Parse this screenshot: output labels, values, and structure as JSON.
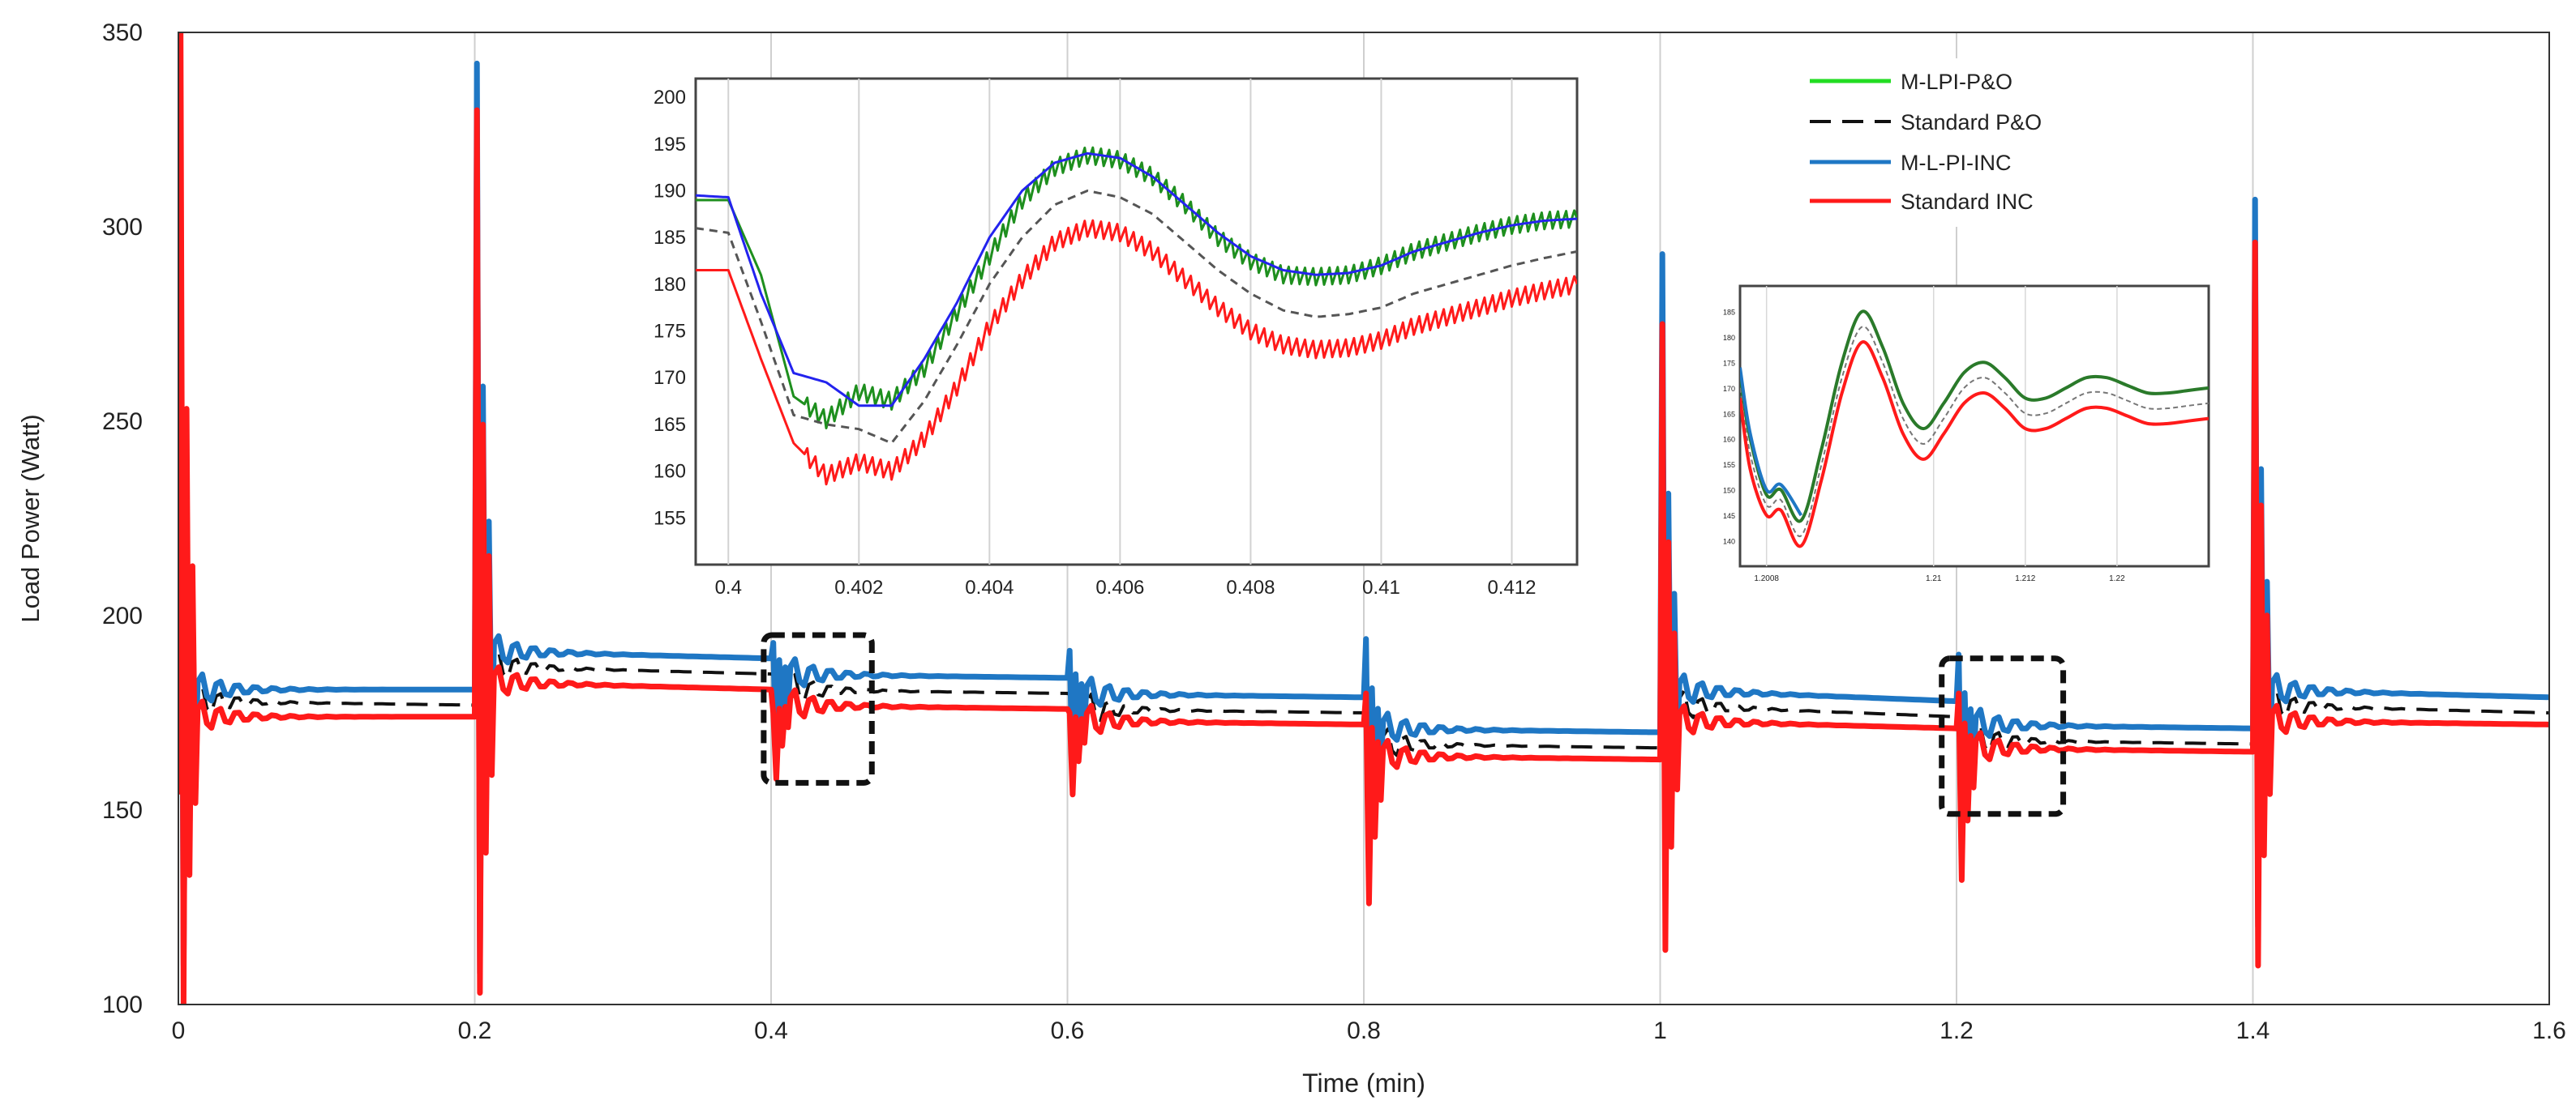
{
  "chart_data": {
    "type": "line",
    "xlabel": "Time (min)",
    "ylabel": "Load Power (Watt)",
    "xlim": [
      0,
      1.6
    ],
    "ylim": [
      100,
      350
    ],
    "x_ticks": [
      "0",
      "0.2",
      "0.4",
      "0.6",
      "0.8",
      "1",
      "1.2",
      "1.4",
      "1.6"
    ],
    "y_ticks": [
      "100",
      "150",
      "200",
      "250",
      "300",
      "350"
    ],
    "grid": "vertical",
    "legend": {
      "placement": "top-right",
      "entries": [
        {
          "label": "M-LPI-P&O",
          "color": "#22dd22",
          "style": "solid"
        },
        {
          "label": "Standard P&O",
          "color": "#111111",
          "style": "dashed"
        },
        {
          "label": "M-L-PI-INC",
          "color": "#1f77c4",
          "style": "solid"
        },
        {
          "label": "Standard INC",
          "color": "#ff1a1a",
          "style": "solid"
        }
      ]
    },
    "step_times": [
      0,
      0.2,
      0.4,
      0.6,
      0.8,
      1.0,
      1.2,
      1.4
    ],
    "spike_peaks": {
      "M-L-PI-INC": [
        275,
        342,
        193,
        191,
        194,
        293,
        190,
        307
      ],
      "Standard INC": [
        350,
        330,
        175,
        175,
        180,
        275,
        180,
        296
      ]
    },
    "spike_troughs": {
      "M-L-PI-INC": [
        110,
        108,
        160,
        158,
        138,
        130,
        140,
        120
      ],
      "Standard INC": [
        100,
        103,
        158,
        154,
        126,
        114,
        132,
        110
      ]
    },
    "series": [
      {
        "name": "M-L-PI-INC",
        "color": "#1f77c4",
        "style": "solid",
        "segments": [
          {
            "t0": 0,
            "t1": 0.2,
            "start": 181,
            "end": 181
          },
          {
            "t0": 0.2,
            "t1": 0.4,
            "start": 191,
            "end": 189
          },
          {
            "t0": 0.4,
            "t1": 0.6,
            "start": 185,
            "end": 184
          },
          {
            "t0": 0.6,
            "t1": 0.8,
            "start": 180,
            "end": 179
          },
          {
            "t0": 0.8,
            "t1": 1.0,
            "start": 171,
            "end": 170
          },
          {
            "t0": 1.0,
            "t1": 1.2,
            "start": 181,
            "end": 178
          },
          {
            "t0": 1.2,
            "t1": 1.4,
            "start": 172,
            "end": 171
          },
          {
            "t0": 1.4,
            "t1": 1.6,
            "start": 181,
            "end": 179
          }
        ]
      },
      {
        "name": "Standard P&O",
        "color": "#111111",
        "style": "dashed",
        "segments": [
          {
            "t0": 0,
            "t1": 0.2,
            "start": 178,
            "end": 177
          },
          {
            "t0": 0.2,
            "t1": 0.4,
            "start": 187,
            "end": 185
          },
          {
            "t0": 0.4,
            "t1": 0.6,
            "start": 181,
            "end": 180
          },
          {
            "t0": 0.6,
            "t1": 0.8,
            "start": 176,
            "end": 175
          },
          {
            "t0": 0.8,
            "t1": 1.0,
            "start": 167,
            "end": 166
          },
          {
            "t0": 1.0,
            "t1": 1.2,
            "start": 177,
            "end": 174
          },
          {
            "t0": 1.2,
            "t1": 1.4,
            "start": 168,
            "end": 167
          },
          {
            "t0": 1.4,
            "t1": 1.6,
            "start": 177,
            "end": 175
          }
        ]
      },
      {
        "name": "Standard INC",
        "color": "#ff1a1a",
        "style": "solid",
        "segments": [
          {
            "t0": 0,
            "t1": 0.2,
            "start": 174,
            "end": 174
          },
          {
            "t0": 0.2,
            "t1": 0.4,
            "start": 183,
            "end": 181
          },
          {
            "t0": 0.4,
            "t1": 0.6,
            "start": 177,
            "end": 176
          },
          {
            "t0": 0.6,
            "t1": 0.8,
            "start": 173,
            "end": 172
          },
          {
            "t0": 0.8,
            "t1": 1.0,
            "start": 164,
            "end": 163
          },
          {
            "t0": 1.0,
            "t1": 1.2,
            "start": 173,
            "end": 171
          },
          {
            "t0": 1.2,
            "t1": 1.4,
            "start": 166,
            "end": 165
          },
          {
            "t0": 1.4,
            "t1": 1.6,
            "start": 173,
            "end": 172
          }
        ]
      }
    ],
    "zoom_boxes": [
      {
        "name": "zoom-box-0.4",
        "t0": 0.395,
        "t1": 0.468,
        "y0": 157,
        "y1": 195
      },
      {
        "name": "zoom-box-1.2",
        "t0": 1.19,
        "t1": 1.272,
        "y0": 149,
        "y1": 189
      }
    ],
    "inset_1": {
      "type": "line",
      "xlim": [
        0.3995,
        0.413
      ],
      "ylim": [
        150,
        202
      ],
      "x_ticks": [
        "0.4",
        "0.402",
        "0.404",
        "0.406",
        "0.408",
        "0.41",
        "0.412"
      ],
      "y_ticks": [
        "155",
        "160",
        "165",
        "170",
        "175",
        "180",
        "185",
        "190",
        "195",
        "200"
      ],
      "series": [
        {
          "name": "M-LPI-P&O",
          "color": "#1e8f1e",
          "sawtooth": true,
          "x": [
            0.3995,
            0.4,
            0.4005,
            0.401,
            0.4015,
            0.402,
            0.4025,
            0.403,
            0.4035,
            0.404,
            0.4045,
            0.405,
            0.4055,
            0.406,
            0.4065,
            0.407,
            0.4075,
            0.408,
            0.4085,
            0.409,
            0.4095,
            0.41,
            0.4105,
            0.411,
            0.4115,
            0.412,
            0.4125,
            0.413
          ],
          "y": [
            189,
            189,
            181,
            168,
            165.5,
            168.5,
            167.5,
            171,
            177,
            183,
            189,
            192.5,
            193.8,
            193.3,
            191.5,
            188.5,
            185,
            182.5,
            181,
            180.8,
            181,
            182,
            183.5,
            184.5,
            185.5,
            186.3,
            186.8,
            187
          ]
        },
        {
          "name": "M-L-PI-INC",
          "color": "#2323ee",
          "sawtooth": false,
          "x": [
            0.3995,
            0.4,
            0.4005,
            0.401,
            0.4015,
            0.402,
            0.4025,
            0.403,
            0.4035,
            0.404,
            0.4045,
            0.405,
            0.4055,
            0.406,
            0.4065,
            0.407,
            0.4075,
            0.408,
            0.4085,
            0.409,
            0.4095,
            0.41,
            0.4105,
            0.411,
            0.4115,
            0.412,
            0.4125,
            0.413
          ],
          "y": [
            189.5,
            189.3,
            179,
            170.5,
            169.5,
            167,
            167,
            172,
            178,
            185,
            190,
            193,
            194,
            193.5,
            191.5,
            188.5,
            185.5,
            183,
            181.5,
            181,
            181.2,
            182,
            183.5,
            184.5,
            185.5,
            186.3,
            186.8,
            187
          ]
        },
        {
          "name": "Standard P&O",
          "color": "#555555",
          "dashed": true,
          "x": [
            0.3995,
            0.4,
            0.4005,
            0.401,
            0.4015,
            0.402,
            0.4025,
            0.403,
            0.4035,
            0.404,
            0.4045,
            0.405,
            0.4055,
            0.406,
            0.4065,
            0.407,
            0.4075,
            0.408,
            0.4085,
            0.409,
            0.4095,
            0.41,
            0.4105,
            0.411,
            0.4115,
            0.412,
            0.4125,
            0.413
          ],
          "y": [
            186,
            185.5,
            176,
            166,
            165,
            164.5,
            163,
            167.5,
            173.5,
            180,
            185,
            188.5,
            190,
            189.3,
            187.5,
            184.5,
            181.5,
            179,
            177.2,
            176.5,
            176.8,
            177.5,
            179,
            180,
            181,
            182,
            182.8,
            183.5
          ]
        },
        {
          "name": "Standard INC",
          "color": "#ff1a1a",
          "sawtooth": true,
          "x": [
            0.3995,
            0.4,
            0.4005,
            0.401,
            0.4015,
            0.402,
            0.4025,
            0.403,
            0.4035,
            0.404,
            0.4045,
            0.405,
            0.4055,
            0.406,
            0.4065,
            0.407,
            0.4075,
            0.408,
            0.4085,
            0.409,
            0.4095,
            0.41,
            0.4105,
            0.411,
            0.4115,
            0.412,
            0.4125,
            0.413
          ],
          "y": [
            181.5,
            181.5,
            172,
            163,
            159.5,
            161,
            160,
            163.5,
            169,
            175.5,
            180.5,
            184.5,
            186,
            185.5,
            183.5,
            180.5,
            177.5,
            175,
            173.5,
            173,
            173.2,
            174,
            175.5,
            176.5,
            177.5,
            178.5,
            179.3,
            180
          ]
        }
      ]
    },
    "inset_2": {
      "type": "line",
      "xlim": [
        1.1995,
        1.2225
      ],
      "ylim": [
        135,
        190
      ],
      "x_ticks": [
        "1.2008",
        "1.21",
        "1.212",
        "1.22"
      ],
      "y_ticks": [
        "185",
        "180",
        "175",
        "170",
        "165",
        "160",
        "155",
        "150",
        "145",
        "140"
      ],
      "series": [
        {
          "name": "M-LPI-P&O",
          "color": "#2a7a2a",
          "x": [
            1.1995,
            1.2,
            1.2008,
            1.2015,
            1.2025,
            1.2035,
            1.2045,
            1.2055,
            1.2065,
            1.2075,
            1.2085,
            1.2095,
            1.2105,
            1.2115,
            1.2125,
            1.2135,
            1.2145,
            1.2155,
            1.2165,
            1.2175,
            1.2185,
            1.2195,
            1.2205,
            1.2215,
            1.2225
          ],
          "y": [
            172,
            160,
            149,
            150,
            144,
            158,
            175,
            185,
            178,
            167,
            162,
            167,
            173,
            175,
            172,
            168,
            168,
            170,
            172,
            172,
            170.5,
            169,
            169,
            169.5,
            170
          ]
        },
        {
          "name": "Standard P&O",
          "color": "#777777",
          "dashed": true,
          "x": [
            1.1995,
            1.2,
            1.2008,
            1.2015,
            1.2025,
            1.2035,
            1.2045,
            1.2055,
            1.2065,
            1.2075,
            1.2085,
            1.2095,
            1.2105,
            1.2115,
            1.2125,
            1.2135,
            1.2145,
            1.2155,
            1.2165,
            1.2175,
            1.2185,
            1.2195,
            1.2205,
            1.2215,
            1.2225
          ],
          "y": [
            170,
            157,
            147,
            148,
            141,
            155,
            172,
            182,
            175,
            164,
            159,
            164,
            170,
            172,
            169,
            165,
            165,
            167,
            169,
            169,
            167.5,
            166,
            166,
            166.5,
            167
          ]
        },
        {
          "name": "Standard INC",
          "color": "#ff1a1a",
          "x": [
            1.1995,
            1.2,
            1.2008,
            1.2015,
            1.2025,
            1.2035,
            1.2045,
            1.2055,
            1.2065,
            1.2075,
            1.2085,
            1.2095,
            1.2105,
            1.2115,
            1.2125,
            1.2135,
            1.2145,
            1.2155,
            1.2165,
            1.2175,
            1.2185,
            1.2195,
            1.2205,
            1.2215,
            1.2225
          ],
          "y": [
            168,
            154,
            145,
            146,
            139,
            152,
            169,
            179,
            172,
            161,
            156,
            161,
            167,
            169,
            166,
            162,
            162,
            164,
            166,
            166,
            164.5,
            163,
            163,
            163.5,
            164
          ]
        },
        {
          "name": "M-L-PI-INC",
          "color": "#1f77c4",
          "x": [
            1.1995,
            1.2,
            1.2008,
            1.2015,
            1.2025
          ],
          "y": [
            174,
            161,
            150,
            151,
            145
          ]
        }
      ]
    }
  }
}
